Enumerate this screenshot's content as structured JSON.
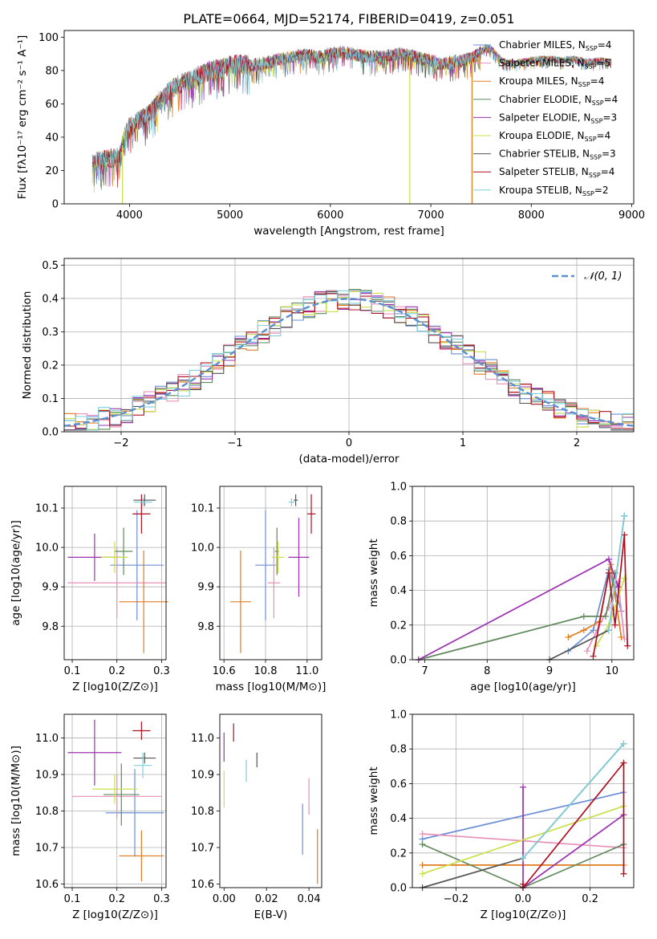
{
  "figure_title": "PLATE=0664, MJD=52174, FIBERID=0419, z=0.051",
  "colors": {
    "chabrier_miles": "#6a8fd6",
    "salpeter_miles": "#e88fba",
    "kroupa_miles": "#e07a1f",
    "chabrier_elodie": "#5f8a5a",
    "salpeter_elodie": "#9b30b0",
    "kroupa_elodie": "#c9e04a",
    "chabrier_stelib": "#555555",
    "salpeter_stelib": "#b01020",
    "kroupa_stelib": "#7fd0dc",
    "normal_curve": "#5b8fd0",
    "grid": "#b0b0b0"
  },
  "legend_spectrum": [
    {
      "name": "Chabrier MILES",
      "n": "4",
      "color": "#6a8fd6"
    },
    {
      "name": "Salpeter MILES",
      "n": "5",
      "color": "#e88fba"
    },
    {
      "name": "Kroupa MILES",
      "n": "4",
      "color": "#e07a1f"
    },
    {
      "name": "Chabrier ELODIE",
      "n": "4",
      "color": "#5f8a5a"
    },
    {
      "name": "Salpeter ELODIE",
      "n": "3",
      "color": "#9b30b0"
    },
    {
      "name": "Kroupa ELODIE",
      "n": "4",
      "color": "#c9e04a"
    },
    {
      "name": "Chabrier STELIB",
      "n": "3",
      "color": "#555555"
    },
    {
      "name": "Salpeter STELIB",
      "n": "4",
      "color": "#b01020"
    },
    {
      "name": "Kroupa STELIB",
      "n": "2",
      "color": "#7fd0dc"
    }
  ],
  "legend_prefix": "N",
  "legend_sub": "SSP",
  "legend_histogram": "𝒩(0, 1)",
  "chart_data": [
    {
      "id": "spectrum",
      "type": "line",
      "xlabel": "wavelength [Angstrom, rest frame]",
      "ylabel": "Flux [fλ10⁻¹⁷ erg cm⁻² s⁻¹ A⁻¹]",
      "xlim": [
        3350,
        9020
      ],
      "ylim": [
        0,
        104
      ],
      "xticks": [
        4000,
        5000,
        6000,
        7000,
        8000,
        9000
      ],
      "yticks": [
        0,
        20,
        40,
        60,
        80,
        100
      ],
      "grid": false,
      "legend": "right",
      "x": [
        3630,
        3700,
        3800,
        3900,
        3950,
        4000,
        4100,
        4200,
        4300,
        4400,
        4500,
        4600,
        4700,
        4800,
        4900,
        5000,
        5100,
        5200,
        5300,
        5400,
        5500,
        5600,
        5700,
        5800,
        5900,
        6000,
        6100,
        6200,
        6300,
        6400,
        6500,
        6600,
        6700,
        6800,
        6900,
        7000,
        7100,
        7200,
        7300,
        7400,
        7500,
        7550,
        7600,
        7700,
        7800,
        7900,
        8000,
        8100,
        8200,
        8300,
        8400,
        8500,
        8600,
        8700,
        8800
      ],
      "y": [
        24,
        26,
        27,
        28,
        40,
        46,
        50,
        54,
        62,
        68,
        72,
        74,
        77,
        80,
        81,
        83,
        84,
        83,
        84,
        85,
        87,
        88,
        89,
        89,
        88,
        90,
        91,
        90,
        89,
        88,
        88,
        89,
        90,
        89,
        87,
        86,
        84,
        85,
        86,
        87,
        91,
        94,
        93,
        86,
        84,
        85,
        86,
        87,
        87,
        86,
        87,
        86,
        85,
        86,
        85
      ],
      "dips": [
        {
          "x": 3930,
          "y": 0,
          "color": "#c9e04a"
        },
        {
          "x": 6790,
          "y": 0,
          "color": "#c9e04a"
        },
        {
          "x": 7410,
          "y": 0,
          "color": "#e07a1f"
        }
      ]
    },
    {
      "id": "residual_histogram",
      "type": "line",
      "xlabel": "(data-model)/error",
      "ylabel": "Normed distribution",
      "xlim": [
        -2.5,
        2.5
      ],
      "ylim": [
        0,
        0.52
      ],
      "xticks": [
        -2,
        -1,
        0,
        1,
        2
      ],
      "yticks": [
        0.0,
        0.1,
        0.2,
        0.3,
        0.4,
        0.5
      ],
      "grid": true,
      "legend": "top-right",
      "bins": {
        "start": -2.5,
        "width": 0.1,
        "count": 50
      },
      "normal_curve": {
        "mean": 0,
        "sigma": 1
      }
    },
    {
      "id": "age_vs_Z",
      "type": "scatter",
      "xlabel": "Z [log10(Z/Z⊙)]",
      "ylabel": "age  [log10(age/yr)]",
      "xlim": [
        0.082,
        0.31
      ],
      "ylim": [
        9.715,
        10.155
      ],
      "xticks": [
        0.1,
        0.2,
        0.3
      ],
      "yticks": [
        9.8,
        9.9,
        10.0,
        10.1
      ],
      "grid": true,
      "points": [
        {
          "x": 0.245,
          "y": 9.955,
          "xerr": 0.06,
          "yerr": 0.14,
          "color": "#6a8fd6"
        },
        {
          "x": 0.2,
          "y": 9.91,
          "xerr": 0.11,
          "yerr": 0.09,
          "color": "#e88fba"
        },
        {
          "x": 0.26,
          "y": 9.862,
          "xerr": 0.055,
          "yerr": 0.13,
          "color": "#e07a1f"
        },
        {
          "x": 0.215,
          "y": 9.99,
          "xerr": 0.02,
          "yerr": 0.06,
          "color": "#5f8a5a"
        },
        {
          "x": 0.15,
          "y": 9.975,
          "xerr": 0.06,
          "yerr": 0.06,
          "color": "#9b30b0"
        },
        {
          "x": 0.195,
          "y": 9.975,
          "xerr": 0.03,
          "yerr": 0.04,
          "color": "#c9e04a"
        },
        {
          "x": 0.262,
          "y": 10.12,
          "xerr": 0.025,
          "yerr": 0.015,
          "color": "#555555"
        },
        {
          "x": 0.255,
          "y": 10.085,
          "xerr": 0.02,
          "yerr": 0.05,
          "color": "#b01020"
        },
        {
          "x": 0.258,
          "y": 10.115,
          "xerr": 0.02,
          "yerr": 0.01,
          "color": "#7fd0dc"
        }
      ]
    },
    {
      "id": "age_vs_mass",
      "type": "scatter",
      "xlabel": "mass [log10(M/M⊙)]",
      "ylabel": "",
      "xlim": [
        10.58,
        11.07
      ],
      "ylim": [
        9.715,
        10.155
      ],
      "xticks": [
        10.6,
        10.8,
        11.0
      ],
      "yticks": [
        9.8,
        9.9,
        10.0,
        10.1
      ],
      "grid": true,
      "points": [
        {
          "x": 10.8,
          "y": 9.955,
          "xerr": 0.05,
          "yerr": 0.14,
          "color": "#6a8fd6"
        },
        {
          "x": 10.84,
          "y": 9.91,
          "xerr": 0.03,
          "yerr": 0.09,
          "color": "#e88fba"
        },
        {
          "x": 10.68,
          "y": 9.862,
          "xerr": 0.05,
          "yerr": 0.13,
          "color": "#e07a1f"
        },
        {
          "x": 10.855,
          "y": 9.99,
          "xerr": 0.01,
          "yerr": 0.06,
          "color": "#5f8a5a"
        },
        {
          "x": 10.96,
          "y": 9.975,
          "xerr": 0.05,
          "yerr": 0.1,
          "color": "#9b30b0"
        },
        {
          "x": 10.86,
          "y": 9.975,
          "xerr": 0.03,
          "yerr": 0.04,
          "color": "#c9e04a"
        },
        {
          "x": 10.945,
          "y": 10.12,
          "xerr": 0.01,
          "yerr": 0.015,
          "color": "#555555"
        },
        {
          "x": 11.02,
          "y": 10.085,
          "xerr": 0.02,
          "yerr": 0.05,
          "color": "#b01020"
        },
        {
          "x": 10.925,
          "y": 10.115,
          "xerr": 0.015,
          "yerr": 0.01,
          "color": "#7fd0dc"
        }
      ]
    },
    {
      "id": "mass_weight_vs_age",
      "type": "line",
      "xlabel": "age  [log10(age/yr)]",
      "ylabel": "mass weight",
      "xlim": [
        6.8,
        10.35
      ],
      "ylim": [
        0,
        1.0
      ],
      "xticks": [
        7,
        8,
        9,
        10
      ],
      "yticks": [
        0.0,
        0.2,
        0.4,
        0.6,
        0.8,
        1.0
      ],
      "grid": true,
      "series": [
        {
          "color": "#6a8fd6",
          "x": [
            9.3,
            9.7,
            9.95,
            10.15
          ],
          "y": [
            0.05,
            0.17,
            0.52,
            0.28
          ]
        },
        {
          "color": "#e88fba",
          "x": [
            9.6,
            9.8,
            9.95,
            10.1,
            10.2
          ],
          "y": [
            0.05,
            0.2,
            0.3,
            0.45,
            0.12
          ]
        },
        {
          "color": "#e07a1f",
          "x": [
            9.3,
            9.55,
            9.8,
            9.98,
            10.15
          ],
          "y": [
            0.13,
            0.17,
            0.22,
            0.55,
            0.13
          ]
        },
        {
          "color": "#5f8a5a",
          "x": [
            6.9,
            9.55,
            9.9,
            10.05
          ],
          "y": [
            0.0,
            0.25,
            0.25,
            0.5
          ]
        },
        {
          "color": "#9b30b0",
          "x": [
            6.9,
            9.95,
            10.1
          ],
          "y": [
            0.0,
            0.58,
            0.42
          ]
        },
        {
          "color": "#c9e04a",
          "x": [
            9.75,
            9.95,
            10.05,
            10.2
          ],
          "y": [
            0.08,
            0.2,
            0.3,
            0.47
          ]
        },
        {
          "color": "#555555",
          "x": [
            9.0,
            9.95,
            10.2
          ],
          "y": [
            0.0,
            0.17,
            0.83
          ]
        },
        {
          "color": "#b01020",
          "x": [
            9.7,
            9.95,
            10.05,
            10.2,
            10.25
          ],
          "y": [
            0.02,
            0.5,
            0.2,
            0.72,
            0.08
          ]
        },
        {
          "color": "#7fd0dc",
          "x": [
            9.95,
            10.2
          ],
          "y": [
            0.17,
            0.83
          ]
        }
      ]
    },
    {
      "id": "mass_vs_Z",
      "type": "scatter",
      "xlabel": "Z [log10(Z/Z⊙)]",
      "ylabel": "mass [log10(M/M⊙)]",
      "xlim": [
        0.082,
        0.31
      ],
      "ylim": [
        10.59,
        11.065
      ],
      "xticks": [
        0.1,
        0.2,
        0.3
      ],
      "yticks": [
        10.6,
        10.7,
        10.8,
        10.9,
        11.0
      ],
      "grid": true,
      "points": [
        {
          "x": 0.24,
          "y": 10.795,
          "xerr": 0.065,
          "yerr": 0.12,
          "color": "#6a8fd6"
        },
        {
          "x": 0.2,
          "y": 10.84,
          "xerr": 0.1,
          "yerr": 0.06,
          "color": "#e88fba"
        },
        {
          "x": 0.255,
          "y": 10.677,
          "xerr": 0.05,
          "yerr": 0.07,
          "color": "#e07a1f"
        },
        {
          "x": 0.21,
          "y": 10.845,
          "xerr": 0.04,
          "yerr": 0.085,
          "color": "#5f8a5a"
        },
        {
          "x": 0.15,
          "y": 10.96,
          "xerr": 0.06,
          "yerr": 0.09,
          "color": "#9b30b0"
        },
        {
          "x": 0.195,
          "y": 10.86,
          "xerr": 0.05,
          "yerr": 0.04,
          "color": "#c9e04a"
        },
        {
          "x": 0.262,
          "y": 10.945,
          "xerr": 0.025,
          "yerr": 0.015,
          "color": "#555555"
        },
        {
          "x": 0.255,
          "y": 11.02,
          "xerr": 0.02,
          "yerr": 0.025,
          "color": "#b01020"
        },
        {
          "x": 0.258,
          "y": 10.925,
          "xerr": 0.02,
          "yerr": 0.035,
          "color": "#7fd0dc"
        }
      ]
    },
    {
      "id": "mass_vs_ebv",
      "type": "scatter",
      "xlabel": "E(B-V)",
      "ylabel": "",
      "xlim": [
        -0.002,
        0.046
      ],
      "ylim": [
        10.59,
        11.065
      ],
      "xticks": [
        0.0,
        0.02,
        0.04
      ],
      "yticks": [
        10.6,
        10.7,
        10.8,
        10.9,
        11.0
      ],
      "grid": false,
      "points": [
        {
          "x": 0.037,
          "y": 10.75,
          "xerr": 0,
          "yerr": 0.07,
          "color": "#6a8fd6"
        },
        {
          "x": 0.04,
          "y": 10.84,
          "xerr": 0,
          "yerr": 0.05,
          "color": "#e88fba"
        },
        {
          "x": 0.044,
          "y": 10.675,
          "xerr": 0,
          "yerr": 0.075,
          "color": "#e07a1f"
        },
        {
          "x": 0.0,
          "y": 10.975,
          "xerr": 0,
          "yerr": 0.04,
          "color": "#9b30b0"
        },
        {
          "x": 0.0,
          "y": 10.86,
          "xerr": 0,
          "yerr": 0.05,
          "color": "#c9e04a"
        },
        {
          "x": 0.0045,
          "y": 11.015,
          "xerr": 0,
          "yerr": 0.025,
          "color": "#b01020"
        },
        {
          "x": 0.0155,
          "y": 10.94,
          "xerr": 0,
          "yerr": 0.02,
          "color": "#555555"
        },
        {
          "x": 0.0105,
          "y": 10.91,
          "xerr": 0,
          "yerr": 0.03,
          "color": "#7fd0dc"
        }
      ]
    },
    {
      "id": "mass_weight_vs_Z",
      "type": "line",
      "xlabel": "Z [log10(Z/Z⊙)]",
      "ylabel": "mass weight",
      "xlim": [
        -0.33,
        0.33
      ],
      "ylim": [
        0,
        1.0
      ],
      "xticks": [
        -0.2,
        0.0,
        0.2
      ],
      "yticks": [
        0.0,
        0.2,
        0.4,
        0.6,
        0.8,
        1.0
      ],
      "grid": true,
      "series": [
        {
          "color": "#6a8fd6",
          "x": [
            -0.3,
            0.3
          ],
          "y": [
            0.28,
            0.55
          ]
        },
        {
          "color": "#e88fba",
          "x": [
            -0.3,
            0.3
          ],
          "y": [
            0.31,
            0.23
          ]
        },
        {
          "color": "#e07a1f",
          "x": [
            -0.3,
            0.3
          ],
          "y": [
            0.13,
            0.13
          ]
        },
        {
          "color": "#5f8a5a",
          "x": [
            -0.3,
            0.0,
            0.3
          ],
          "y": [
            0.25,
            0.0,
            0.25
          ]
        },
        {
          "color": "#9b30b0",
          "x": [
            0.0,
            0.0,
            0.3
          ],
          "y": [
            0.58,
            0.0,
            0.42
          ]
        },
        {
          "color": "#c9e04a",
          "x": [
            -0.3,
            0.3
          ],
          "y": [
            0.08,
            0.47
          ]
        },
        {
          "color": "#555555",
          "x": [
            -0.3,
            0.0,
            0.3
          ],
          "y": [
            0.0,
            0.17,
            0.83
          ]
        },
        {
          "color": "#b01020",
          "x": [
            0.0,
            0.0,
            0.3,
            0.3
          ],
          "y": [
            0.02,
            0.0,
            0.72,
            0.08
          ]
        },
        {
          "color": "#7fd0dc",
          "x": [
            0.0,
            0.3
          ],
          "y": [
            0.17,
            0.83
          ]
        }
      ]
    }
  ]
}
